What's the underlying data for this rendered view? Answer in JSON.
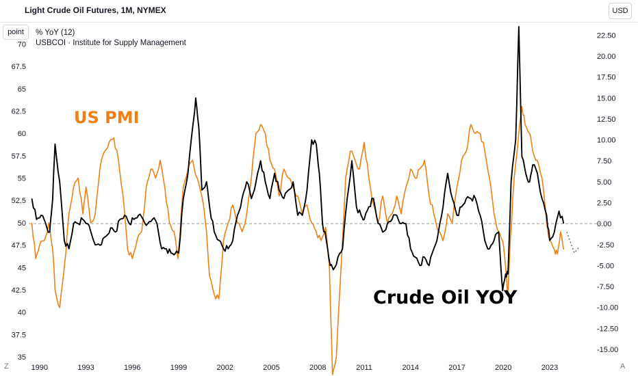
{
  "header": {
    "title": "Light Crude Oil Futures, 1M, NYMEX",
    "currency": "USD",
    "scale_mode": "point"
  },
  "legend": {
    "line1": "% YoY (12)",
    "line2": "USBCOI · Institute for Supply Management"
  },
  "corners": {
    "left": "Z",
    "right": "A"
  },
  "colors": {
    "pmi": "#f08013",
    "oil": "#000000",
    "zero_line": "#999999"
  },
  "chart_data": {
    "type": "line",
    "title": "Light Crude Oil Futures, 1M, NYMEX",
    "x": {
      "min": 1989.3,
      "max": 2025.7,
      "ticks": [
        1990,
        1993,
        1996,
        1999,
        2002,
        2005,
        2008,
        2011,
        2014,
        2017,
        2020,
        2023
      ]
    },
    "y_left": {
      "min": 35,
      "max": 72.4,
      "ticks": [
        35,
        37.5,
        40,
        42.5,
        45,
        47.5,
        50,
        52.5,
        55,
        57.5,
        60,
        62.5,
        65,
        67.5,
        70
      ]
    },
    "y_right": {
      "min": -15.9,
      "max": 24.0,
      "ticks": [
        -15.0,
        -12.5,
        -10.0,
        -7.5,
        -5.0,
        -2.5,
        0.0,
        2.5,
        5.0,
        7.5,
        10.0,
        12.5,
        15.0,
        17.5,
        20.0,
        22.5
      ],
      "zero_line": 0
    },
    "series": [
      {
        "name": "US PMI",
        "axis": "left",
        "x": [
          1989.5,
          1989.75,
          1990.0,
          1990.3,
          1990.6,
          1990.85,
          1991.0,
          1991.3,
          1991.6,
          1991.9,
          1992.2,
          1992.5,
          1992.8,
          1993.0,
          1993.3,
          1993.6,
          1993.9,
          1994.2,
          1994.5,
          1994.8,
          1995.1,
          1995.4,
          1995.7,
          1996.0,
          1996.3,
          1996.6,
          1996.9,
          1997.2,
          1997.5,
          1997.8,
          1998.1,
          1998.4,
          1998.7,
          1998.95,
          1999.3,
          1999.6,
          1999.9,
          2000.2,
          2000.5,
          2000.8,
          2001.0,
          2001.3,
          2001.6,
          2001.9,
          2002.2,
          2002.5,
          2002.8,
          2003.1,
          2003.4,
          2003.7,
          2004.0,
          2004.3,
          2004.6,
          2004.9,
          2005.2,
          2005.5,
          2005.8,
          2006.1,
          2006.4,
          2006.7,
          2007.0,
          2007.3,
          2007.6,
          2007.9,
          2008.2,
          2008.5,
          2008.75,
          2008.95,
          2009.2,
          2009.5,
          2009.8,
          2010.1,
          2010.4,
          2010.7,
          2011.0,
          2011.3,
          2011.6,
          2011.9,
          2012.2,
          2012.5,
          2012.8,
          2013.1,
          2013.4,
          2013.7,
          2014.0,
          2014.3,
          2014.6,
          2014.9,
          2015.2,
          2015.5,
          2015.8,
          2016.1,
          2016.4,
          2016.7,
          2017.0,
          2017.3,
          2017.6,
          2017.9,
          2018.2,
          2018.5,
          2018.8,
          2019.1,
          2019.4,
          2019.7,
          2019.95,
          2020.15,
          2020.3,
          2020.45,
          2020.7,
          2021.0,
          2021.2,
          2021.4,
          2021.7,
          2021.9,
          2022.2,
          2022.5,
          2022.8,
          2023.0,
          2023.3,
          2023.5,
          2023.7,
          2023.9
        ],
        "values": [
          50,
          46,
          47.5,
          48,
          50,
          47,
          42.5,
          40.5,
          45,
          51,
          54,
          55,
          51,
          54,
          50,
          51,
          56,
          58,
          59,
          59.5,
          57,
          53,
          47,
          46,
          48,
          49,
          54,
          56,
          55,
          57,
          54,
          50,
          49,
          46,
          54,
          56,
          57,
          55,
          53,
          49,
          44,
          42,
          41.5,
          48,
          50,
          52,
          50,
          49,
          51,
          55,
          60,
          61,
          60,
          57,
          56,
          53,
          56,
          55,
          54,
          53,
          51,
          52,
          50,
          49,
          48,
          49.5,
          45,
          33,
          35,
          45,
          55,
          58,
          57,
          56,
          59,
          55,
          52,
          50,
          53,
          50,
          51,
          53,
          51,
          54,
          56,
          55,
          56,
          57,
          53,
          51,
          49,
          48,
          51,
          50,
          54,
          57,
          58,
          61,
          60,
          60,
          58,
          55,
          51,
          49,
          48,
          45,
          42,
          48,
          55,
          60,
          63,
          61,
          60,
          58,
          57,
          55,
          50,
          48,
          47,
          46.5,
          49,
          47
        ]
      },
      {
        "name": "Crude Oil YOY",
        "axis": "right",
        "x": [
          1989.5,
          1989.8,
          1990.1,
          1990.4,
          1990.65,
          1990.85,
          1991.0,
          1991.3,
          1991.6,
          1991.9,
          1992.2,
          1992.5,
          1992.8,
          1993.1,
          1993.4,
          1993.7,
          1994.0,
          1994.3,
          1994.6,
          1994.9,
          1995.2,
          1995.5,
          1995.8,
          1996.1,
          1996.4,
          1996.7,
          1997.0,
          1997.3,
          1997.6,
          1997.9,
          1998.2,
          1998.5,
          1998.8,
          1999.0,
          1999.3,
          1999.6,
          1999.9,
          2000.1,
          2000.3,
          2000.5,
          2000.8,
          2001.0,
          2001.3,
          2001.6,
          2001.9,
          2002.2,
          2002.5,
          2002.8,
          2003.1,
          2003.4,
          2003.7,
          2004.0,
          2004.3,
          2004.6,
          2004.9,
          2005.2,
          2005.5,
          2005.8,
          2006.1,
          2006.4,
          2006.7,
          2007.0,
          2007.3,
          2007.6,
          2007.9,
          2008.1,
          2008.3,
          2008.55,
          2008.8,
          2009.0,
          2009.3,
          2009.6,
          2009.9,
          2010.2,
          2010.5,
          2010.8,
          2011.0,
          2011.3,
          2011.6,
          2011.9,
          2012.2,
          2012.5,
          2012.8,
          2013.1,
          2013.4,
          2013.7,
          2014.0,
          2014.3,
          2014.6,
          2014.9,
          2015.2,
          2015.5,
          2015.8,
          2016.1,
          2016.4,
          2016.7,
          2017.0,
          2017.3,
          2017.6,
          2017.9,
          2018.2,
          2018.5,
          2018.8,
          2019.1,
          2019.4,
          2019.7,
          2019.95,
          2020.15,
          2020.3,
          2020.5,
          2020.8,
          2021.0,
          2021.2,
          2021.45,
          2021.7,
          2021.9,
          2022.2,
          2022.5,
          2022.8,
          2023.0,
          2023.3,
          2023.6,
          2023.9
        ],
        "values": [
          3,
          0.5,
          1,
          0,
          -1,
          3,
          9.5,
          5,
          -2,
          -3,
          0,
          0,
          0.5,
          0,
          -1.5,
          -2.5,
          -2.5,
          -1.5,
          -0.5,
          -1,
          0.5,
          1,
          0,
          0.5,
          1,
          0.5,
          0,
          0.5,
          0,
          -3,
          -3,
          -3.5,
          -3.5,
          -3.5,
          3,
          6,
          11.5,
          15,
          11.5,
          4,
          5,
          2,
          -1,
          -2,
          -3,
          -3,
          -2,
          1,
          3,
          5,
          3,
          5,
          7.5,
          5,
          3,
          6,
          4,
          3,
          4,
          5,
          1,
          1,
          4,
          10,
          9.5,
          6,
          0,
          -2,
          -5,
          -5.5,
          -4,
          -3,
          3,
          7.5,
          2,
          1,
          0.5,
          2,
          3,
          0,
          -1,
          0,
          0.5,
          1,
          0,
          0,
          -3,
          -4,
          -5,
          -4,
          -5,
          -3,
          -1,
          2,
          6,
          3,
          1,
          2,
          3,
          3,
          3,
          1,
          -2,
          -3,
          -2,
          -1,
          -8,
          -6,
          -6,
          5,
          10,
          23.5,
          8,
          6,
          5,
          7,
          6,
          3,
          1,
          -2,
          -1,
          1.5,
          0
        ]
      },
      {
        "name": "Crude Oil YOY projection",
        "axis": "right",
        "style": "dotted",
        "x": [
          2024.1,
          2024.4,
          2024.6,
          2024.9
        ],
        "values": [
          -1,
          -2.5,
          -3.5,
          -2.8
        ]
      }
    ],
    "annotations": [
      {
        "text": "US PMI",
        "series": "US PMI"
      },
      {
        "text": "Crude Oil YOY",
        "series": "Crude Oil YOY"
      }
    ]
  }
}
